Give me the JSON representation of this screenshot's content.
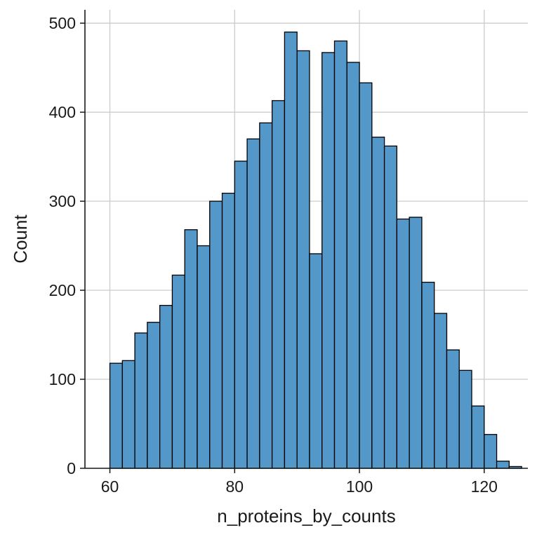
{
  "chart_data": {
    "type": "bar",
    "subtype": "histogram",
    "xlabel": "n_proteins_by_counts",
    "ylabel": "Count",
    "xlim": [
      56,
      127
    ],
    "ylim": [
      0,
      515
    ],
    "xticks": [
      60,
      80,
      100,
      120
    ],
    "yticks": [
      0,
      100,
      200,
      300,
      400,
      500
    ],
    "grid": true,
    "bar_color": "#5497c9",
    "edge_color": "#000000",
    "grid_color": "#cccccc",
    "bins": [
      {
        "x0": 60,
        "x1": 62,
        "count": 118
      },
      {
        "x0": 62,
        "x1": 64,
        "count": 121
      },
      {
        "x0": 64,
        "x1": 66,
        "count": 152
      },
      {
        "x0": 66,
        "x1": 68,
        "count": 164
      },
      {
        "x0": 68,
        "x1": 70,
        "count": 183
      },
      {
        "x0": 70,
        "x1": 72,
        "count": 217
      },
      {
        "x0": 72,
        "x1": 74,
        "count": 268
      },
      {
        "x0": 74,
        "x1": 76,
        "count": 250
      },
      {
        "x0": 76,
        "x1": 78,
        "count": 300
      },
      {
        "x0": 78,
        "x1": 80,
        "count": 309
      },
      {
        "x0": 80,
        "x1": 82,
        "count": 345
      },
      {
        "x0": 82,
        "x1": 84,
        "count": 370
      },
      {
        "x0": 84,
        "x1": 86,
        "count": 388
      },
      {
        "x0": 86,
        "x1": 88,
        "count": 413
      },
      {
        "x0": 88,
        "x1": 90,
        "count": 490
      },
      {
        "x0": 90,
        "x1": 92,
        "count": 469
      },
      {
        "x0": 92,
        "x1": 94,
        "count": 241
      },
      {
        "x0": 94,
        "x1": 96,
        "count": 467
      },
      {
        "x0": 96,
        "x1": 98,
        "count": 480
      },
      {
        "x0": 98,
        "x1": 100,
        "count": 456
      },
      {
        "x0": 100,
        "x1": 102,
        "count": 433
      },
      {
        "x0": 102,
        "x1": 104,
        "count": 372
      },
      {
        "x0": 104,
        "x1": 106,
        "count": 362
      },
      {
        "x0": 106,
        "x1": 108,
        "count": 280
      },
      {
        "x0": 108,
        "x1": 110,
        "count": 282
      },
      {
        "x0": 110,
        "x1": 112,
        "count": 209
      },
      {
        "x0": 112,
        "x1": 114,
        "count": 174
      },
      {
        "x0": 114,
        "x1": 116,
        "count": 133
      },
      {
        "x0": 116,
        "x1": 118,
        "count": 110
      },
      {
        "x0": 118,
        "x1": 120,
        "count": 70
      },
      {
        "x0": 120,
        "x1": 122,
        "count": 38
      },
      {
        "x0": 122,
        "x1": 124,
        "count": 8
      },
      {
        "x0": 124,
        "x1": 126,
        "count": 2
      }
    ]
  }
}
